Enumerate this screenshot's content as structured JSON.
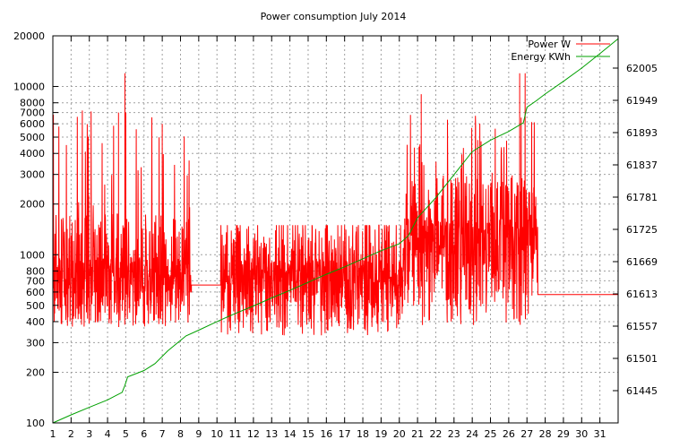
{
  "chart_data": {
    "type": "line",
    "title": "Power consumption July 2014",
    "xlabel": "",
    "ylabel": "",
    "y2label": "",
    "grid": true,
    "legend_position": "top-right",
    "x_ticks": [
      "1",
      "2",
      "3",
      "4",
      "5",
      "6",
      "7",
      "8",
      "9",
      "10",
      "11",
      "12",
      "13",
      "14",
      "15",
      "16",
      "17",
      "18",
      "19",
      "20",
      "21",
      "22",
      "23",
      "24",
      "25",
      "26",
      "27",
      "28",
      "29",
      "30",
      "31"
    ],
    "xlim": [
      1,
      32
    ],
    "y_scale": "log",
    "ylim": [
      100,
      20000
    ],
    "y_ticks": [
      100,
      200,
      300,
      400,
      500,
      600,
      700,
      800,
      1000,
      2000,
      3000,
      4000,
      5000,
      6000,
      7000,
      8000,
      10000,
      20000
    ],
    "y2lim": [
      61389,
      62061
    ],
    "y2_ticks": [
      61445,
      61501,
      61557,
      61613,
      61669,
      61725,
      61781,
      61837,
      61893,
      61949,
      62005
    ],
    "series": [
      {
        "name": "Power W",
        "color": "#ff0000",
        "axis": "y",
        "segments": [
          {
            "x_start": 1.0,
            "x_end": 8.6,
            "typical": 650,
            "low": 370,
            "spike_max": 12000
          },
          {
            "x_start": 8.6,
            "x_end": 10.2,
            "constant": 660
          },
          {
            "x_start": 10.2,
            "x_end": 20.3,
            "typical": 620,
            "low": 330,
            "spike_max": 1500
          },
          {
            "x_start": 20.3,
            "x_end": 27.6,
            "typical": 1100,
            "low": 380,
            "spike_max": 12000
          },
          {
            "x_start": 27.6,
            "x_end": 32.0,
            "constant": 580
          }
        ],
        "peaks": [
          {
            "x": 4.95,
            "y": 12000
          },
          {
            "x": 5.0,
            "y": 7000
          },
          {
            "x": 4.6,
            "y": 7000
          },
          {
            "x": 7.0,
            "y": 6000
          },
          {
            "x": 21.2,
            "y": 9000
          },
          {
            "x": 26.6,
            "y": 12000
          },
          {
            "x": 26.9,
            "y": 12000
          }
        ]
      },
      {
        "name": "Energy KWh",
        "color": "#00a000",
        "axis": "y2",
        "x": [
          1.0,
          2.0,
          3.0,
          4.0,
          4.8,
          4.95,
          5.1,
          6.0,
          6.6,
          7.3,
          8.3,
          9.0,
          10.0,
          11.0,
          12.0,
          13.0,
          14.0,
          15.0,
          16.0,
          17.0,
          18.0,
          19.0,
          20.0,
          20.5,
          21.0,
          22.0,
          23.0,
          24.0,
          25.0,
          26.0,
          26.8,
          27.0,
          27.5,
          28.0,
          29.0,
          30.0,
          31.0,
          32.0
        ],
        "y": [
          61389,
          61403,
          61416,
          61429,
          61442,
          61454,
          61469,
          61480,
          61492,
          61514,
          61540,
          61550,
          61565,
          61579,
          61592,
          61606,
          61619,
          61633,
          61647,
          61660,
          61674,
          61688,
          61700,
          61714,
          61745,
          61780,
          61820,
          61860,
          61880,
          61895,
          61910,
          61937,
          61948,
          61960,
          61982,
          62005,
          62030,
          62056
        ]
      }
    ]
  }
}
